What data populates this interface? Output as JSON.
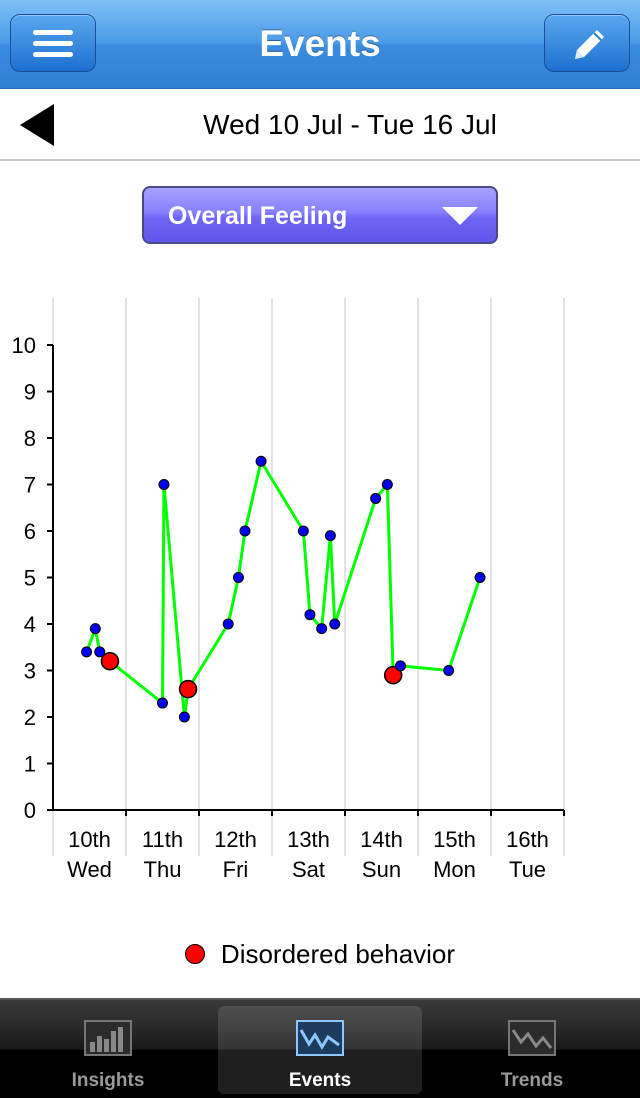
{
  "header": {
    "title": "Events",
    "menu_icon": "menu-icon",
    "edit_icon": "pencil-icon"
  },
  "date_nav": {
    "range": "Wed 10 Jul - Tue 16 Jul",
    "back_icon": "back-arrow-icon"
  },
  "selector": {
    "label": "Overall Feeling",
    "icon": "dropdown-triangle-icon"
  },
  "chart_data": {
    "type": "line",
    "title": "",
    "xlabel": "",
    "ylabel": "",
    "ylim": [
      0,
      10
    ],
    "xlim": [
      0,
      7
    ],
    "yticks": [
      0,
      1,
      2,
      3,
      4,
      5,
      6,
      7,
      8,
      9,
      10
    ],
    "categories": [
      {
        "day": "10th",
        "weekday": "Wed"
      },
      {
        "day": "11th",
        "weekday": "Thu"
      },
      {
        "day": "12th",
        "weekday": "Fri"
      },
      {
        "day": "13th",
        "weekday": "Sat"
      },
      {
        "day": "14th",
        "weekday": "Sun"
      },
      {
        "day": "15th",
        "weekday": "Mon"
      },
      {
        "day": "16th",
        "weekday": "Tue"
      }
    ],
    "grid": "vertical",
    "line_color": "#00ff00",
    "point_color": "#0000ee",
    "highlight_color": "#ff0000",
    "series": [
      {
        "values": [
          {
            "x": 0.46,
            "y": 3.4
          },
          {
            "x": 0.58,
            "y": 3.9
          },
          {
            "x": 0.64,
            "y": 3.4
          },
          {
            "x": 0.78,
            "y": 3.2,
            "disordered": true
          },
          {
            "x": 1.5,
            "y": 2.3
          },
          {
            "x": 1.52,
            "y": 7.0
          },
          {
            "x": 1.8,
            "y": 2.0
          },
          {
            "x": 1.85,
            "y": 2.6,
            "disordered": true
          },
          {
            "x": 2.4,
            "y": 4.0
          },
          {
            "x": 2.54,
            "y": 5.0
          },
          {
            "x": 2.63,
            "y": 6.0
          },
          {
            "x": 2.85,
            "y": 7.5
          },
          {
            "x": 3.43,
            "y": 6.0
          },
          {
            "x": 3.52,
            "y": 4.2
          },
          {
            "x": 3.68,
            "y": 3.9
          },
          {
            "x": 3.8,
            "y": 5.9
          },
          {
            "x": 3.86,
            "y": 4.0
          },
          {
            "x": 4.42,
            "y": 6.7
          },
          {
            "x": 4.58,
            "y": 7.0
          },
          {
            "x": 4.66,
            "y": 2.9,
            "disordered": true
          },
          {
            "x": 4.76,
            "y": 3.1
          },
          {
            "x": 5.42,
            "y": 3.0
          },
          {
            "x": 5.85,
            "y": 5.0
          }
        ]
      }
    ],
    "legend": {
      "position": "bottom",
      "label": "Disordered behavior"
    }
  },
  "tabs": [
    {
      "label": "Insights",
      "icon": "bar-chart-icon",
      "active": false
    },
    {
      "label": "Events",
      "icon": "line-chart-icon",
      "active": true
    },
    {
      "label": "Trends",
      "icon": "trend-chart-icon",
      "active": false
    }
  ]
}
